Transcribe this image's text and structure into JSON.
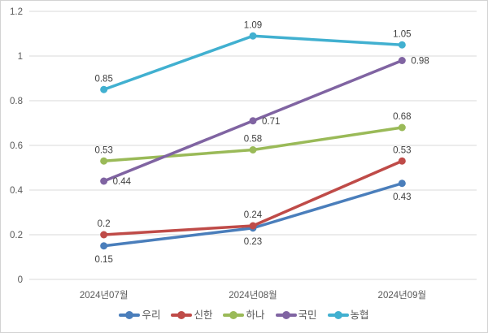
{
  "chart_style": {
    "background": "#ffffff",
    "frame_border_color": "#d3d3d3",
    "gridline_color": "#d9d9d9",
    "axis_text_color": "#595959",
    "data_label_color": "#404040"
  },
  "chart_data": {
    "type": "line",
    "title": "",
    "xlabel": "",
    "ylabel": "",
    "categories": [
      "2024년07월",
      "2024년08월",
      "2024년09월"
    ],
    "series": [
      {
        "name": "우리",
        "color": "#4a7ebb",
        "values": [
          0.15,
          0.23,
          0.43
        ],
        "labels": [
          "0.15",
          "0.23",
          "0.43"
        ],
        "label_position": "below"
      },
      {
        "name": "신한",
        "color": "#bf4b48",
        "values": [
          0.2,
          0.24,
          0.53
        ],
        "labels": [
          "0.2",
          "0.24",
          "0.53"
        ],
        "label_position": "above"
      },
      {
        "name": "하나",
        "color": "#9aba58",
        "values": [
          0.53,
          0.58,
          0.68
        ],
        "labels": [
          "0.53",
          "0.58",
          "0.68"
        ],
        "label_position": "above"
      },
      {
        "name": "국민",
        "color": "#8064a2",
        "values": [
          0.44,
          0.71,
          0.98
        ],
        "labels": [
          "0.44",
          "0.71",
          "0.98"
        ],
        "label_position": "right"
      },
      {
        "name": "농협",
        "color": "#41b0d0",
        "values": [
          0.85,
          1.09,
          1.05
        ],
        "labels": [
          "0.85",
          "1.09",
          "1.05"
        ],
        "label_position": "above"
      }
    ],
    "ylim": [
      0,
      1.2
    ],
    "y_ticks": [
      {
        "label": "0",
        "value": 0
      },
      {
        "label": "0.2",
        "value": 0.2
      },
      {
        "label": "0.4",
        "value": 0.4
      },
      {
        "label": "0.6",
        "value": 0.6
      },
      {
        "label": "0.8",
        "value": 0.8
      },
      {
        "label": "1",
        "value": 1
      },
      {
        "label": "1.2",
        "value": 1.2
      }
    ],
    "grid": true,
    "legend_position": "bottom",
    "marker": "circle"
  }
}
